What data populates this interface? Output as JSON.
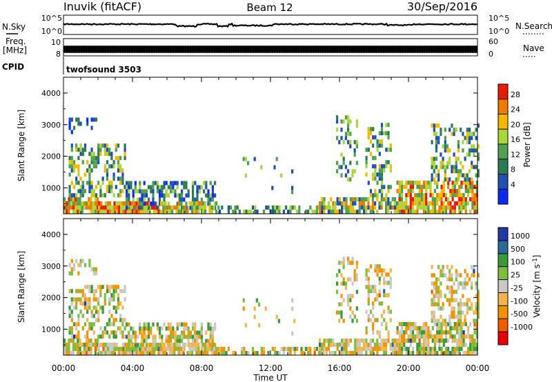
{
  "header": {
    "station": "Inuvik (fitACF)",
    "beam": "Beam 12",
    "date": "30/Sep/2016"
  },
  "rows": {
    "nsky_label": "N.Sky",
    "nsky_ticks": [
      "10^5",
      "10^0"
    ],
    "nsearch_label": "N.Search",
    "nsearch_ticks": [
      "10^5",
      "10^0"
    ],
    "freq_label_1": "Freq.",
    "freq_label_2": "[MHz]",
    "freq_ticks": [
      "10",
      "8"
    ],
    "nave_label": "Nave",
    "nave_ticks": [
      "60",
      "0"
    ],
    "cpid_label": "CPID",
    "cpid_value": "twofsound 3503"
  },
  "colors": {
    "power": [
      "#0b2bef",
      "#1f4fb4",
      "#2a7a55",
      "#4fa04f",
      "#a9d63a",
      "#f5b800",
      "#f07a00",
      "#e81c00"
    ],
    "velocity": [
      "#e80000",
      "#f05a00",
      "#f59200",
      "#f2b54c",
      "#c8c8c8",
      "#7ebd3e",
      "#3a9a3a",
      "#2a6a9a",
      "#1f3aa0"
    ]
  },
  "chart_data": [
    {
      "type": "heatmap",
      "quantity": "power",
      "ylabel": "Slant Range [km]",
      "ylim": [
        180,
        4500
      ],
      "y_ticks": [
        1000,
        2000,
        3000,
        4000
      ],
      "xlim_hours": [
        0,
        24
      ],
      "colorbar_label": "Power [dB]",
      "colorbar_ticks": [
        4,
        8,
        12,
        16,
        20,
        24,
        28
      ],
      "colorbar_range": [
        0,
        32
      ]
    },
    {
      "type": "heatmap",
      "quantity": "velocity",
      "ylabel": "Slant Range [km]",
      "ylim": [
        180,
        4500
      ],
      "y_ticks": [
        1000,
        2000,
        3000,
        4000
      ],
      "xlim_hours": [
        0,
        24
      ],
      "x_tick_labels": [
        "00:00",
        "04:00",
        "08:00",
        "12:00",
        "16:00",
        "20:00",
        "00:00"
      ],
      "xlabel": "Time UT",
      "colorbar_label": "Velocity [m s^-1]",
      "colorbar_ticks": [
        "1000",
        "500",
        "100",
        "25",
        "-25",
        "-100",
        "-500",
        "-1000"
      ]
    }
  ]
}
